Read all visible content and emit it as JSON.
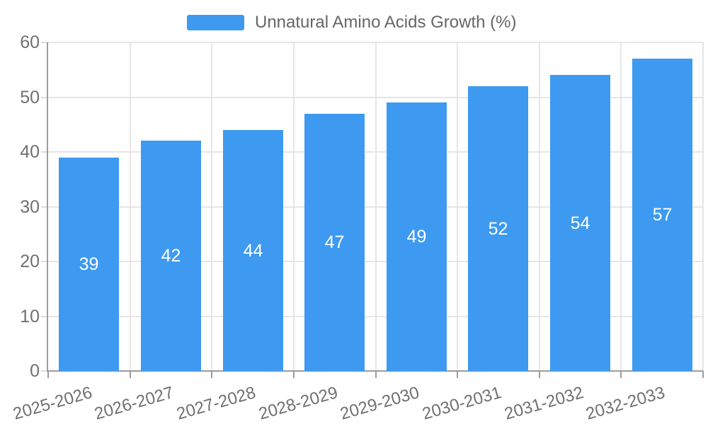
{
  "legend": {
    "label": "Unnatural Amino Acids Growth (%)"
  },
  "colors": {
    "bar": "#3d9af0",
    "grid": "#e6e6e6",
    "axis": "#9c9c9c",
    "y_tick": "#dcdcdc",
    "tick_label": "#707070",
    "legend_text": "#666666",
    "bar_label": "#ffffff",
    "background": "#ffffff"
  },
  "chart_data": {
    "type": "bar",
    "title": "",
    "xlabel": "",
    "ylabel": "",
    "series_label": "Unnatural Amino Acids Growth (%)",
    "categories": [
      "2025-2026",
      "2026-2027",
      "2027-2028",
      "2028-2029",
      "2029-2030",
      "2030-2031",
      "2031-2032",
      "2032-2033"
    ],
    "values": [
      39,
      42,
      44,
      47,
      49,
      52,
      54,
      57
    ],
    "ylim": [
      0,
      60
    ],
    "yticks": [
      0,
      10,
      20,
      30,
      40,
      50,
      60
    ],
    "grid": true,
    "legend_position": "top",
    "value_labels": "inside-center",
    "x_tick_rotation_deg": -16
  }
}
